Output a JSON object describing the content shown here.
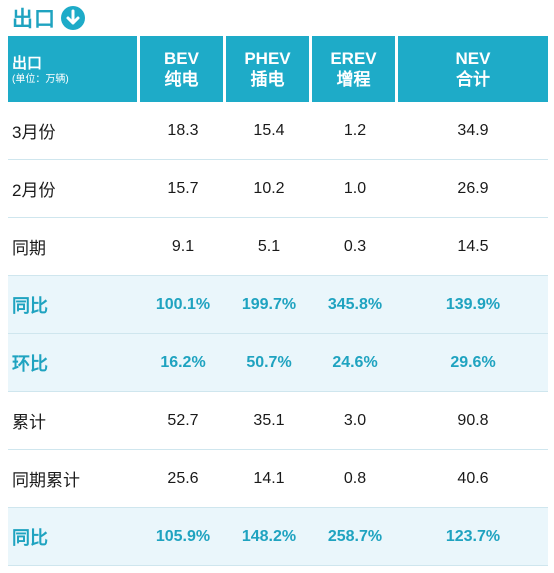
{
  "title": "出口",
  "icon": "arrow-down-circle-icon",
  "accent_color": "#1eabc8",
  "header": {
    "row_label": "出口",
    "unit": "(单位：万辆)",
    "columns": [
      {
        "line1": "BEV",
        "line2": "纯电"
      },
      {
        "line1": "PHEV",
        "line2": "插电"
      },
      {
        "line1": "EREV",
        "line2": "增程"
      },
      {
        "line1": "NEV",
        "line2": "合计"
      }
    ]
  },
  "rows": [
    {
      "label": "3月份",
      "values": [
        "18.3",
        "15.4",
        "1.2",
        "34.9"
      ],
      "highlight": false
    },
    {
      "label": "2月份",
      "values": [
        "15.7",
        "10.2",
        "1.0",
        "26.9"
      ],
      "highlight": false
    },
    {
      "label": "同期",
      "values": [
        "9.1",
        "5.1",
        "0.3",
        "14.5"
      ],
      "highlight": false
    },
    {
      "label": "同比",
      "values": [
        "100.1%",
        "199.7%",
        "345.8%",
        "139.9%"
      ],
      "highlight": true
    },
    {
      "label": "环比",
      "values": [
        "16.2%",
        "50.7%",
        "24.6%",
        "29.6%"
      ],
      "highlight": true
    },
    {
      "label": "累计",
      "values": [
        "52.7",
        "35.1",
        "3.0",
        "90.8"
      ],
      "highlight": false
    },
    {
      "label": "同期累计",
      "values": [
        "25.6",
        "14.1",
        "0.8",
        "40.6"
      ],
      "highlight": false
    },
    {
      "label": "同比",
      "values": [
        "105.9%",
        "148.2%",
        "258.7%",
        "123.7%"
      ],
      "highlight": true
    }
  ]
}
